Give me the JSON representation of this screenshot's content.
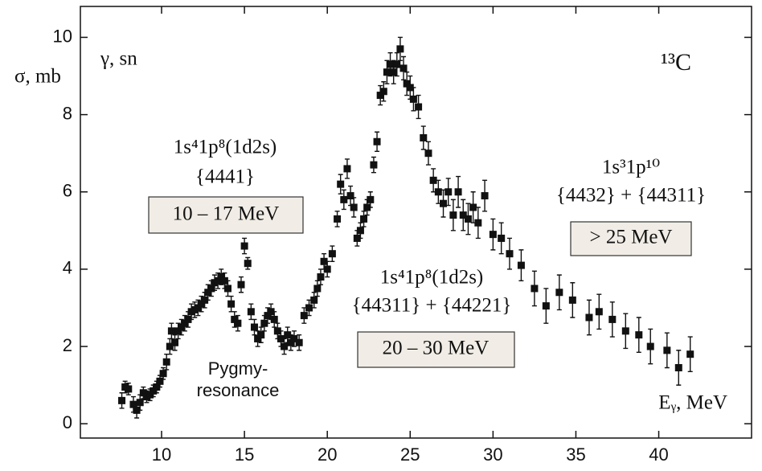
{
  "chart_data": {
    "type": "scatter",
    "y_label": "σ, mb",
    "x_label": "Eᵧ, MeV",
    "reaction": "γ, sn",
    "nucleus": "¹³C",
    "annotations": [
      "1s⁴1p⁸(1d2s)",
      "{4441}",
      "10 – 17 MeV",
      "Pygmy-",
      "resonance",
      "1s⁴1p⁸(1d2s)",
      "{44311} + {44221}",
      "20 – 30 MeV",
      "1s³1p¹⁰",
      "{4432} + {44311}",
      "> 25 MeV"
    ],
    "color": "#111111",
    "xlim": [
      5.1,
      45.6
    ],
    "ylim": [
      -0.37,
      10.8
    ],
    "xticks": [
      10,
      15,
      20,
      25,
      30,
      35,
      40
    ],
    "yticks": [
      0,
      2,
      4,
      6,
      8,
      10
    ],
    "x": [
      7.6,
      7.8,
      8.0,
      8.3,
      8.5,
      8.7,
      8.9,
      9.1,
      9.3,
      9.5,
      9.7,
      9.9,
      10.1,
      10.3,
      10.5,
      10.6,
      10.8,
      11.0,
      11.2,
      11.4,
      11.6,
      11.8,
      12.0,
      12.2,
      12.4,
      12.6,
      12.8,
      13.0,
      13.2,
      13.4,
      13.6,
      13.8,
      14.0,
      14.2,
      14.4,
      14.6,
      14.8,
      15.0,
      15.2,
      15.4,
      15.6,
      15.8,
      16.0,
      16.2,
      16.4,
      16.6,
      16.8,
      17.0,
      17.2,
      17.4,
      17.6,
      17.8,
      18.0,
      18.3,
      18.6,
      18.9,
      19.2,
      19.4,
      19.6,
      19.8,
      20.0,
      20.3,
      20.6,
      20.8,
      21.0,
      21.2,
      21.4,
      21.6,
      21.8,
      22.0,
      22.2,
      22.4,
      22.6,
      22.8,
      23.0,
      23.2,
      23.4,
      23.6,
      23.8,
      24.0,
      24.2,
      24.4,
      24.6,
      24.8,
      25.0,
      25.2,
      25.5,
      25.8,
      26.1,
      26.4,
      26.7,
      27.0,
      27.3,
      27.6,
      27.9,
      28.2,
      28.5,
      28.8,
      29.1,
      29.5,
      30.0,
      30.5,
      31.0,
      31.7,
      32.5,
      33.2,
      34.0,
      34.8,
      35.8,
      36.4,
      37.2,
      38.0,
      38.8,
      39.5,
      40.5,
      41.2,
      41.9
    ],
    "values": [
      0.6,
      0.95,
      0.9,
      0.5,
      0.35,
      0.55,
      0.8,
      0.7,
      0.75,
      0.85,
      0.95,
      1.1,
      1.3,
      1.6,
      2.0,
      2.4,
      2.1,
      2.4,
      2.5,
      2.6,
      2.7,
      2.9,
      2.95,
      3.0,
      3.1,
      3.2,
      3.4,
      3.5,
      3.65,
      3.7,
      3.8,
      3.7,
      3.5,
      3.1,
      2.7,
      2.6,
      3.6,
      4.6,
      4.15,
      2.9,
      2.5,
      2.2,
      2.3,
      2.6,
      2.8,
      2.9,
      2.7,
      2.4,
      2.2,
      2.0,
      2.3,
      2.1,
      2.2,
      2.1,
      2.8,
      3.0,
      3.2,
      3.5,
      3.8,
      4.2,
      4.0,
      4.4,
      5.3,
      6.2,
      5.8,
      6.6,
      5.9,
      5.6,
      4.8,
      5.0,
      5.3,
      5.6,
      5.8,
      6.7,
      7.3,
      8.5,
      8.6,
      9.1,
      9.3,
      9.1,
      9.3,
      9.7,
      9.2,
      8.8,
      8.7,
      8.4,
      8.2,
      7.4,
      7.0,
      6.3,
      6.0,
      5.7,
      6.0,
      5.4,
      6.0,
      5.4,
      5.3,
      5.6,
      5.2,
      5.9,
      4.9,
      4.8,
      4.4,
      4.1,
      3.5,
      3.05,
      3.4,
      3.2,
      2.75,
      2.9,
      2.7,
      2.4,
      2.3,
      2.0,
      1.9,
      1.45,
      1.8
    ],
    "errors": [
      0.2,
      0.15,
      0.15,
      0.2,
      0.2,
      0.2,
      0.15,
      0.15,
      0.15,
      0.15,
      0.15,
      0.15,
      0.15,
      0.2,
      0.2,
      0.2,
      0.2,
      0.2,
      0.2,
      0.2,
      0.2,
      0.2,
      0.2,
      0.2,
      0.2,
      0.2,
      0.2,
      0.2,
      0.2,
      0.2,
      0.2,
      0.2,
      0.2,
      0.2,
      0.2,
      0.2,
      0.2,
      0.2,
      0.15,
      0.2,
      0.2,
      0.2,
      0.2,
      0.2,
      0.2,
      0.2,
      0.2,
      0.2,
      0.2,
      0.2,
      0.2,
      0.2,
      0.2,
      0.2,
      0.2,
      0.2,
      0.2,
      0.2,
      0.2,
      0.2,
      0.2,
      0.2,
      0.2,
      0.25,
      0.25,
      0.25,
      0.25,
      0.25,
      0.2,
      0.2,
      0.2,
      0.2,
      0.2,
      0.2,
      0.25,
      0.25,
      0.25,
      0.3,
      0.3,
      0.3,
      0.3,
      0.3,
      0.3,
      0.3,
      0.3,
      0.3,
      0.3,
      0.3,
      0.3,
      0.3,
      0.3,
      0.35,
      0.35,
      0.4,
      0.4,
      0.4,
      0.4,
      0.4,
      0.4,
      0.4,
      0.4,
      0.4,
      0.4,
      0.4,
      0.45,
      0.45,
      0.45,
      0.45,
      0.45,
      0.45,
      0.45,
      0.45,
      0.45,
      0.45,
      0.45,
      0.45,
      0.45
    ]
  }
}
